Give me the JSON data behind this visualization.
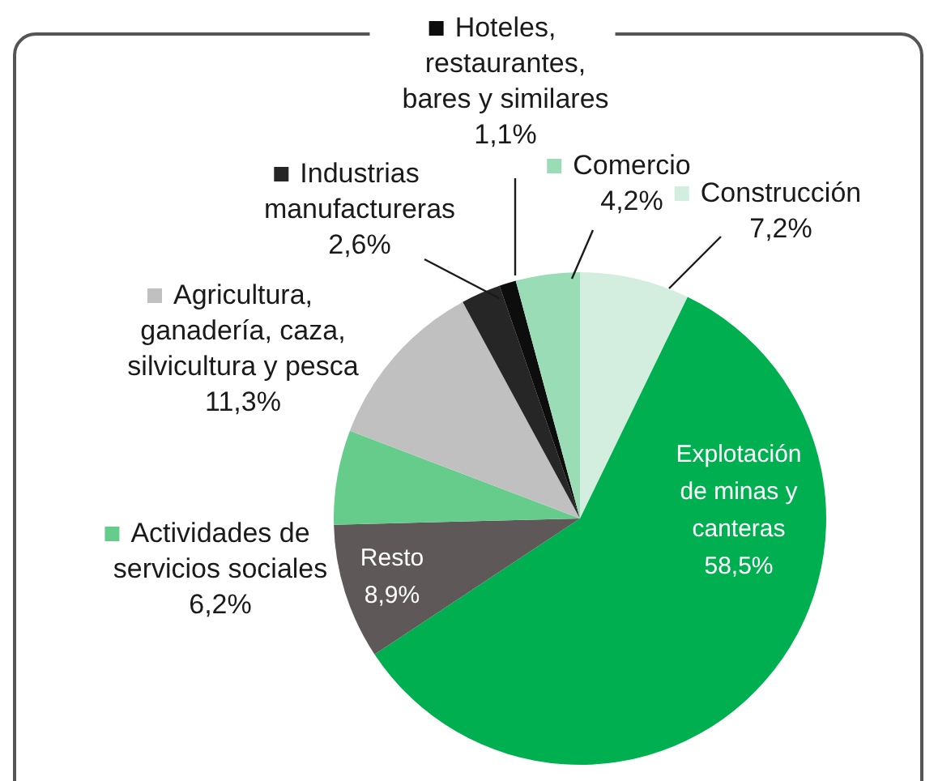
{
  "chart_data": {
    "type": "pie",
    "categories": [
      "Construcción",
      "Explotación de minas y canteras",
      "Resto",
      "Actividades de servicios sociales",
      "Agricultura, ganadería, caza, silvicultura y pesca",
      "Industrias manufactureras",
      "Hoteles, restaurantes, bares y similares",
      "Comercio"
    ],
    "values": [
      7.2,
      58.5,
      8.9,
      6.2,
      11.3,
      2.6,
      1.1,
      4.2
    ],
    "value_labels": [
      "7,2%",
      "58,5%",
      "8,9%",
      "6,2%",
      "11,3%",
      "2,6%",
      "1,1%",
      "4,2%"
    ],
    "colors": [
      "#d3eedf",
      "#00b050",
      "#5e5859",
      "#66cc8c",
      "#c0c0c0",
      "#262626",
      "#0d0d0d",
      "#99dcb6"
    ],
    "legend": "top"
  }
}
